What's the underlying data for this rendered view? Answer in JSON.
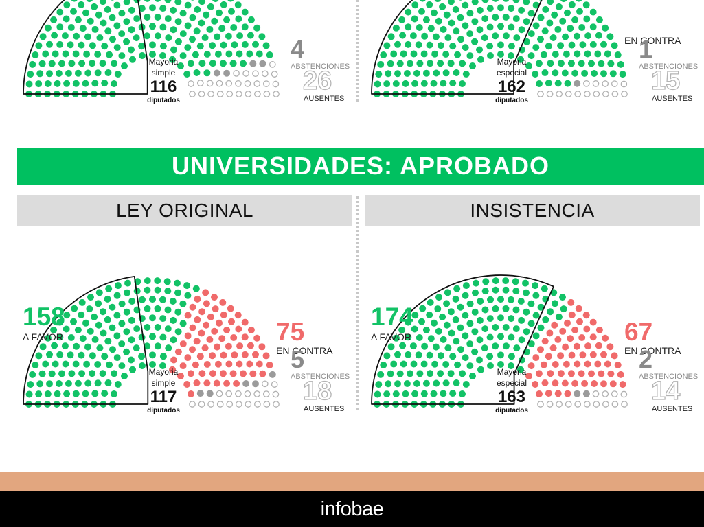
{
  "section_title": {
    "prefix": "UNIVERSIDADES:",
    "result": "APROBADO"
  },
  "headers": {
    "left": "LEY ORIGINAL",
    "right": "INSISTENCIA"
  },
  "brand": "infobae",
  "colors": {
    "favor": "#12c266",
    "contra": "#f06a6a",
    "abstencion": "#9b9b9b",
    "ausente": "#b0b0b0",
    "banner": "#00c060"
  },
  "chart_data": [
    {
      "type": "parliament",
      "favor": null,
      "contra": null,
      "abstenciones": 4,
      "ausentes": 26,
      "labels": {
        "favor": "",
        "contra": "",
        "abstenciones": "ABSTENCIONES",
        "ausentes": "AUSENTES"
      },
      "mayoria": {
        "line1": "Mayoria",
        "line2": "simple",
        "value": 116,
        "unit": "diputados"
      }
    },
    {
      "type": "parliament",
      "favor": null,
      "contra": null,
      "abstenciones": 1,
      "ausentes": 15,
      "labels": {
        "favor": "",
        "contra": "EN CONTRA",
        "abstenciones": "ABSTENCIONES",
        "ausentes": "AUSENTES"
      },
      "mayoria": {
        "line1": "Mayoria",
        "line2": "especial",
        "value": 162,
        "unit": "diputados"
      }
    },
    {
      "type": "parliament",
      "favor": 158,
      "contra": 75,
      "abstenciones": 5,
      "ausentes": 18,
      "labels": {
        "favor": "A FAVOR",
        "contra": "EN CONTRA",
        "abstenciones": "ABSTENCIONES",
        "ausentes": "AUSENTES"
      },
      "mayoria": {
        "line1": "Mayoria",
        "line2": "simple",
        "value": 117,
        "unit": "diputados"
      }
    },
    {
      "type": "parliament",
      "favor": 174,
      "contra": 67,
      "abstenciones": 2,
      "ausentes": 14,
      "labels": {
        "favor": "A FAVOR",
        "contra": "EN CONTRA",
        "abstenciones": "ABSTENCIONES",
        "ausentes": "AUSENTES"
      },
      "mayoria": {
        "line1": "Mayoria",
        "line2": "especial",
        "value": 163,
        "unit": "diputados"
      }
    }
  ]
}
